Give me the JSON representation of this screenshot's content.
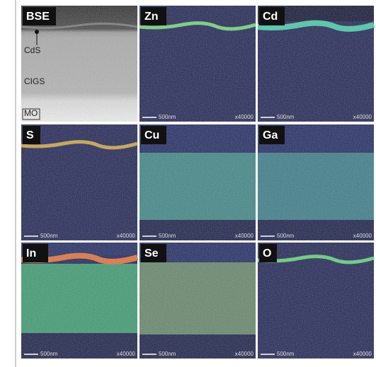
{
  "panels": [
    {
      "label": "BSE",
      "annotations": [
        "CdS",
        "CIGS",
        "MO"
      ]
    },
    {
      "label": "Zn",
      "scale": "500nm",
      "magnification": "x40000"
    },
    {
      "label": "Cd",
      "scale": "500nm",
      "magnification": "x40000"
    },
    {
      "label": "S",
      "scale": "500nm",
      "magnification": "x40000"
    },
    {
      "label": "Cu",
      "scale": "500nm",
      "magnification": "x40000"
    },
    {
      "label": "Ga",
      "scale": "500nm",
      "magnification": "x40000"
    },
    {
      "label": "In",
      "scale": "500nm",
      "magnification": "x40000"
    },
    {
      "label": "Se",
      "scale": "500nm",
      "magnification": "x40000"
    },
    {
      "label": "O",
      "scale": "500nm",
      "magnification": "x40000"
    }
  ]
}
